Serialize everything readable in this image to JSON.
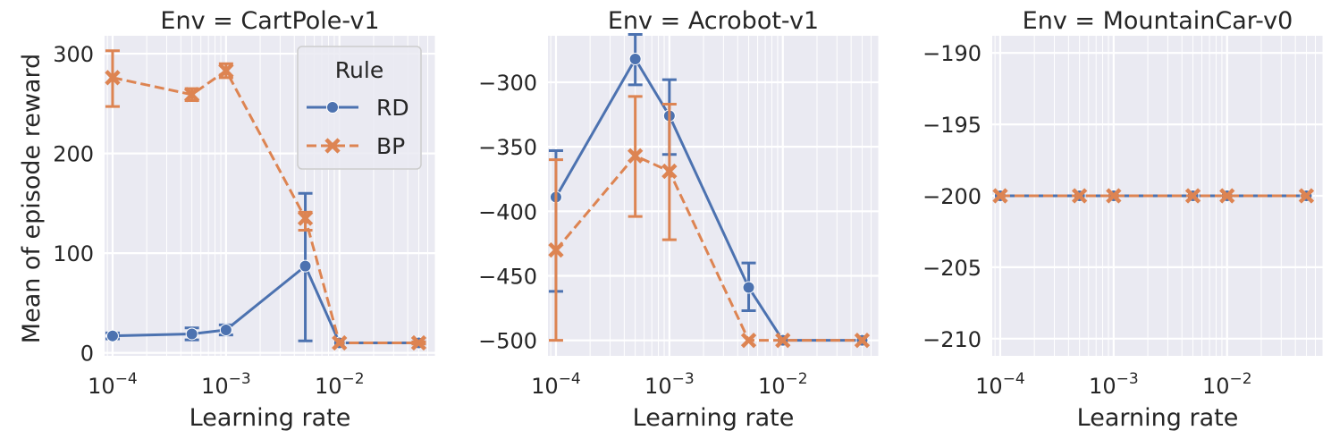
{
  "figure": {
    "ylabel": "Mean of episode reward",
    "colors": {
      "RD": "#4c72b0",
      "BP": "#dd8452",
      "plot_bg": "#eaeaf2",
      "grid": "#ffffff",
      "text": "#262626"
    },
    "legend": {
      "title": "Rule",
      "entries": [
        "RD",
        "BP"
      ],
      "placement": "upper-right of first panel"
    }
  },
  "chart_data": [
    {
      "type": "line",
      "title": "Env = CartPole-v1",
      "xlabel": "Learning rate",
      "ylabel": "Mean of episode reward",
      "xscale": "log",
      "xlim": [
        8.5e-05,
        0.07
      ],
      "ylim": [
        -3,
        318
      ],
      "x_ticks": [
        {
          "value": 0.0001,
          "base": "10",
          "exp": "−4"
        },
        {
          "value": 0.001,
          "base": "10",
          "exp": "−3"
        },
        {
          "value": 0.01,
          "base": "10",
          "exp": "−2"
        }
      ],
      "y_ticks": [
        {
          "value": 0,
          "label": "0"
        },
        {
          "value": 100,
          "label": "100"
        },
        {
          "value": 200,
          "label": "200"
        },
        {
          "value": 300,
          "label": "300"
        }
      ],
      "grid": true,
      "series": [
        {
          "name": "RD",
          "marker": "circle",
          "dash": "solid",
          "x": [
            0.0001,
            0.0005,
            0.001,
            0.005,
            0.01,
            0.05
          ],
          "y": [
            17,
            19,
            23,
            87,
            10,
            10
          ],
          "err_low": [
            14,
            13,
            18,
            12,
            10,
            9
          ],
          "err_high": [
            20,
            25,
            28,
            160,
            10,
            11
          ]
        },
        {
          "name": "BP",
          "marker": "x",
          "dash": "dashed",
          "x": [
            0.0001,
            0.0005,
            0.001,
            0.005,
            0.01,
            0.05
          ],
          "y": [
            276,
            259,
            283,
            135,
            10,
            10
          ],
          "err_low": [
            247,
            253,
            276,
            123,
            10,
            9
          ],
          "err_high": [
            303,
            265,
            290,
            141,
            10,
            11
          ]
        }
      ]
    },
    {
      "type": "line",
      "title": "Env = Acrobot-v1",
      "xlabel": "Learning rate",
      "ylabel": "",
      "xscale": "log",
      "xlim": [
        8.5e-05,
        0.07
      ],
      "ylim": [
        -512,
        -264
      ],
      "x_ticks": [
        {
          "value": 0.0001,
          "base": "10",
          "exp": "−4"
        },
        {
          "value": 0.001,
          "base": "10",
          "exp": "−3"
        },
        {
          "value": 0.01,
          "base": "10",
          "exp": "−2"
        }
      ],
      "y_ticks": [
        {
          "value": -500,
          "label": "−500"
        },
        {
          "value": -450,
          "label": "−450"
        },
        {
          "value": -400,
          "label": "−400"
        },
        {
          "value": -350,
          "label": "−350"
        },
        {
          "value": -300,
          "label": "−300"
        }
      ],
      "grid": true,
      "series": [
        {
          "name": "RD",
          "marker": "circle",
          "dash": "solid",
          "x": [
            0.0001,
            0.0005,
            0.001,
            0.005,
            0.01,
            0.05
          ],
          "y": [
            -389,
            -282,
            -326,
            -459,
            -500,
            -500
          ],
          "err_low": [
            -462,
            -302,
            -356,
            -477,
            -500,
            -500
          ],
          "err_high": [
            -353,
            -263,
            -298,
            -440,
            -500,
            -500
          ]
        },
        {
          "name": "BP",
          "marker": "x",
          "dash": "dashed",
          "x": [
            0.0001,
            0.0005,
            0.001,
            0.005,
            0.01,
            0.05
          ],
          "y": [
            -430,
            -357,
            -369,
            -500,
            -500,
            -500
          ],
          "err_low": [
            -500,
            -404,
            -422,
            -500,
            -500,
            -500
          ],
          "err_high": [
            -360,
            -311,
            -317,
            -500,
            -500,
            -500
          ]
        }
      ]
    },
    {
      "type": "line",
      "title": "Env = MountainCar-v0",
      "xlabel": "Learning rate",
      "ylabel": "",
      "xscale": "log",
      "xlim": [
        8.5e-05,
        0.07
      ],
      "ylim": [
        -211.2,
        -188.8
      ],
      "x_ticks": [
        {
          "value": 0.0001,
          "base": "10",
          "exp": "−4"
        },
        {
          "value": 0.001,
          "base": "10",
          "exp": "−3"
        },
        {
          "value": 0.01,
          "base": "10",
          "exp": "−2"
        }
      ],
      "y_ticks": [
        {
          "value": -210,
          "label": "−210"
        },
        {
          "value": -205,
          "label": "−205"
        },
        {
          "value": -200,
          "label": "−200"
        },
        {
          "value": -195,
          "label": "−195"
        },
        {
          "value": -190,
          "label": "−190"
        }
      ],
      "grid": true,
      "series": [
        {
          "name": "RD",
          "marker": "circle",
          "dash": "solid",
          "x": [
            0.0001,
            0.0005,
            0.001,
            0.005,
            0.01,
            0.05
          ],
          "y": [
            -200,
            -200,
            -200,
            -200,
            -200,
            -200
          ]
        },
        {
          "name": "BP",
          "marker": "x",
          "dash": "dashed",
          "x": [
            0.0001,
            0.0005,
            0.001,
            0.005,
            0.01,
            0.05
          ],
          "y": [
            -200,
            -200,
            -200,
            -200,
            -200,
            -200
          ]
        }
      ]
    }
  ]
}
